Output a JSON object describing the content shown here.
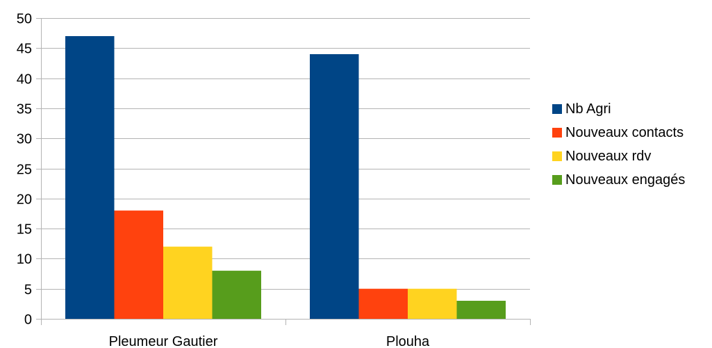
{
  "chart_data": {
    "type": "bar",
    "categories": [
      "Pleumeur Gautier",
      "Plouha"
    ],
    "series": [
      {
        "name": "Nb Agri",
        "color": "#004586",
        "values": [
          47,
          44
        ]
      },
      {
        "name": "Nouveaux contacts",
        "color": "#ff420e",
        "values": [
          18,
          5
        ]
      },
      {
        "name": "Nouveaux rdv",
        "color": "#ffd320",
        "values": [
          12,
          5
        ]
      },
      {
        "name": "Nouveaux engagés",
        "color": "#579d1c",
        "values": [
          8,
          3
        ]
      }
    ],
    "ylim": [
      0,
      50
    ],
    "yticks": [
      0,
      5,
      10,
      15,
      20,
      25,
      30,
      35,
      40,
      45,
      50
    ],
    "grid": true,
    "legend": "right",
    "title": "",
    "xlabel": "",
    "ylabel": ""
  }
}
